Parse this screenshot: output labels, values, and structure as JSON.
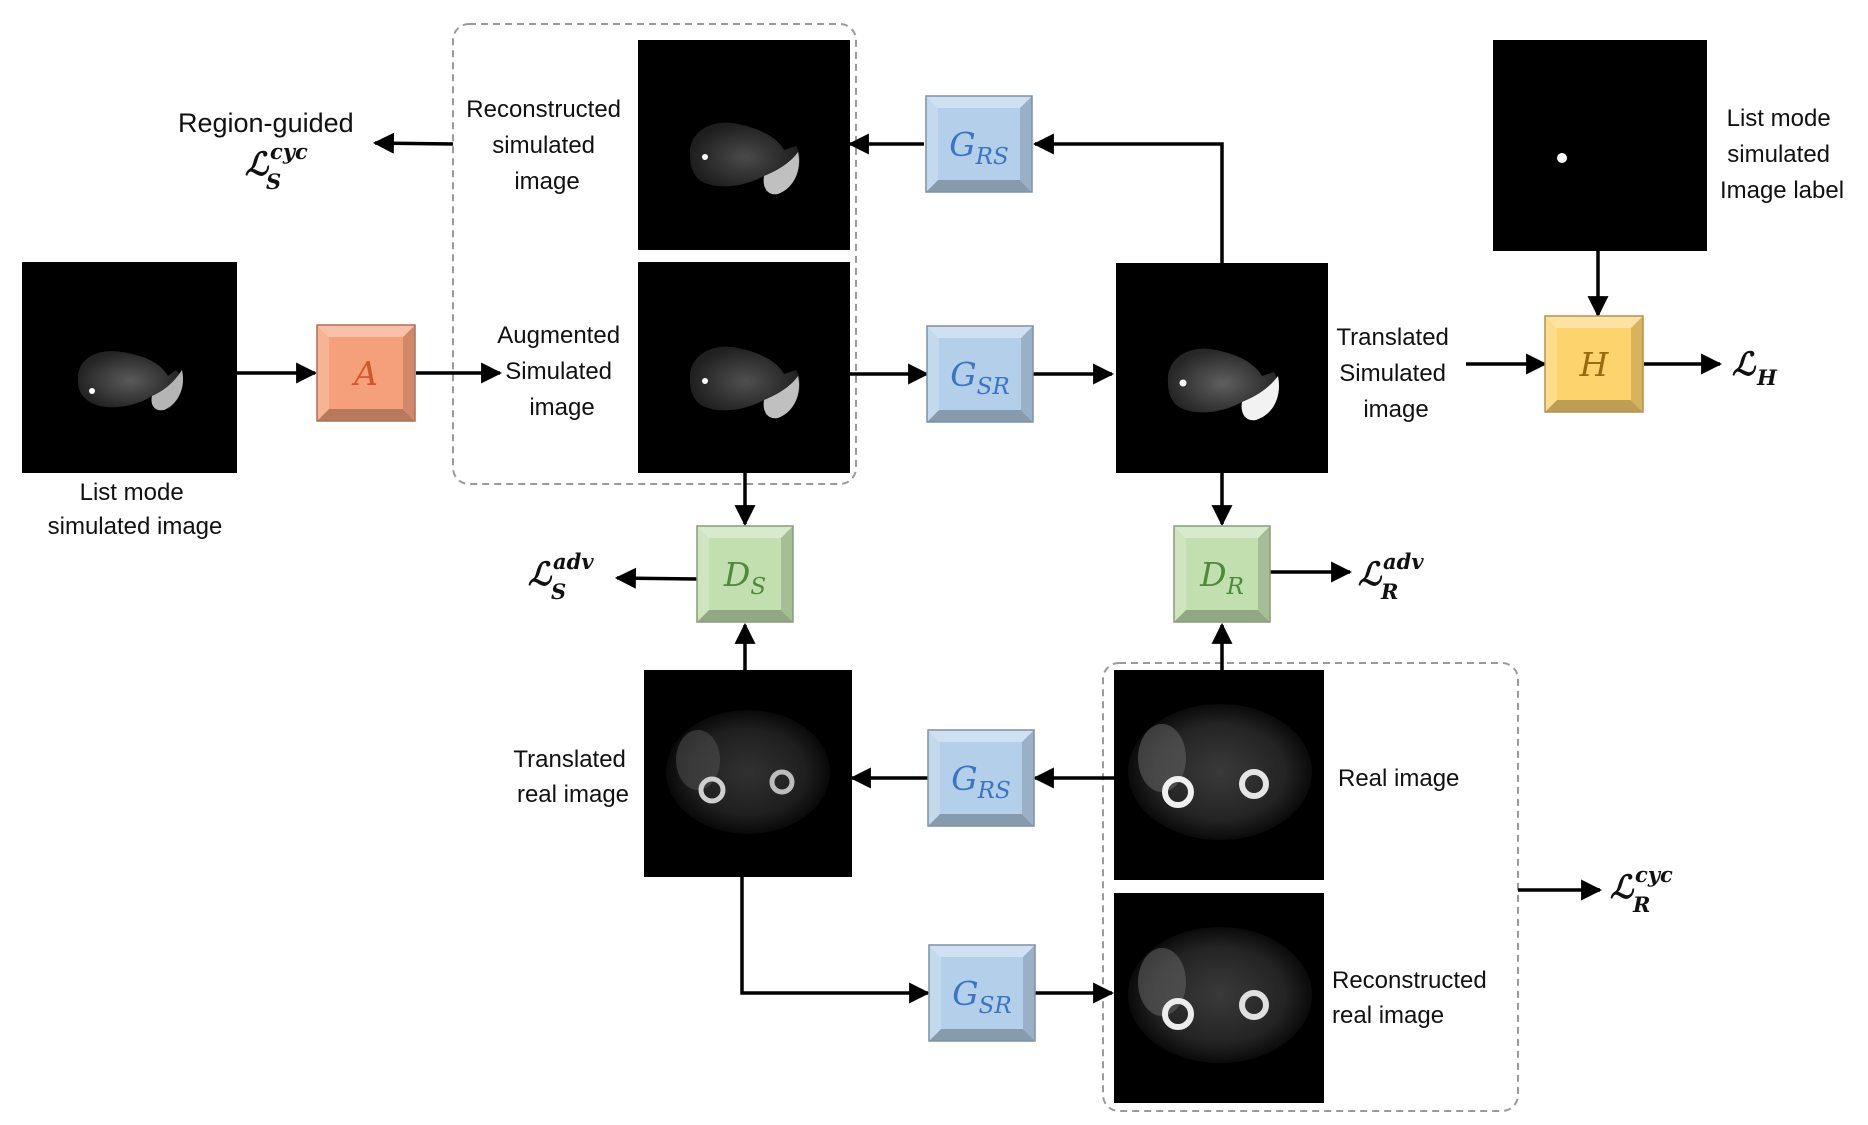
{
  "images": {
    "list_mode_simulated_image": {
      "label": [
        "List mode",
        "simulated image"
      ]
    },
    "reconstructed_simulated_image": {
      "label": [
        "Reconstructed",
        "simulated",
        "image"
      ]
    },
    "augmented_simulated_image": {
      "label": [
        "Augmented",
        "Simulated",
        "image"
      ]
    },
    "translated_simulated_image": {
      "label": [
        "Translated",
        "Simulated",
        "image"
      ]
    },
    "list_mode_image_label": {
      "label": [
        "List mode",
        "simulated",
        "Image label"
      ]
    },
    "translated_real_image": {
      "label": [
        "Translated",
        "real image"
      ]
    },
    "real_image": {
      "label": [
        "Real image"
      ]
    },
    "reconstructed_real_image": {
      "label": [
        "Reconstructed",
        "real image"
      ]
    }
  },
  "blocks": {
    "augment": {
      "letter": "A",
      "sub": "",
      "color": "#f5a07a"
    },
    "g_rs_top": {
      "letter": "G",
      "sub": "RS",
      "color": "#b4cfe9"
    },
    "g_sr_mid": {
      "letter": "G",
      "sub": "SR",
      "color": "#b4cfe9"
    },
    "h_block": {
      "letter": "H",
      "sub": "",
      "color": "#fdd36e"
    },
    "d_s": {
      "letter": "D",
      "sub": "S",
      "color": "#c2dfb0"
    },
    "d_r": {
      "letter": "D",
      "sub": "R",
      "color": "#c2dfb0"
    },
    "g_rs_bottom": {
      "letter": "G",
      "sub": "RS",
      "color": "#b4cfe9"
    },
    "g_sr_bottom": {
      "letter": "G",
      "sub": "SR",
      "color": "#b4cfe9"
    }
  },
  "losses": {
    "region_guided_title": "Region-guided",
    "l_s_cyc": {
      "symbol": "ℒ",
      "sup": "cyc",
      "sub": "S"
    },
    "l_s_adv": {
      "symbol": "ℒ",
      "sup": "adv",
      "sub": "S"
    },
    "l_r_adv": {
      "symbol": "ℒ",
      "sup": "adv",
      "sub": "R"
    },
    "l_r_cyc": {
      "symbol": "ℒ",
      "sup": "cyc",
      "sub": "R"
    },
    "l_h": {
      "symbol": "ℒ",
      "sub": "H"
    }
  }
}
